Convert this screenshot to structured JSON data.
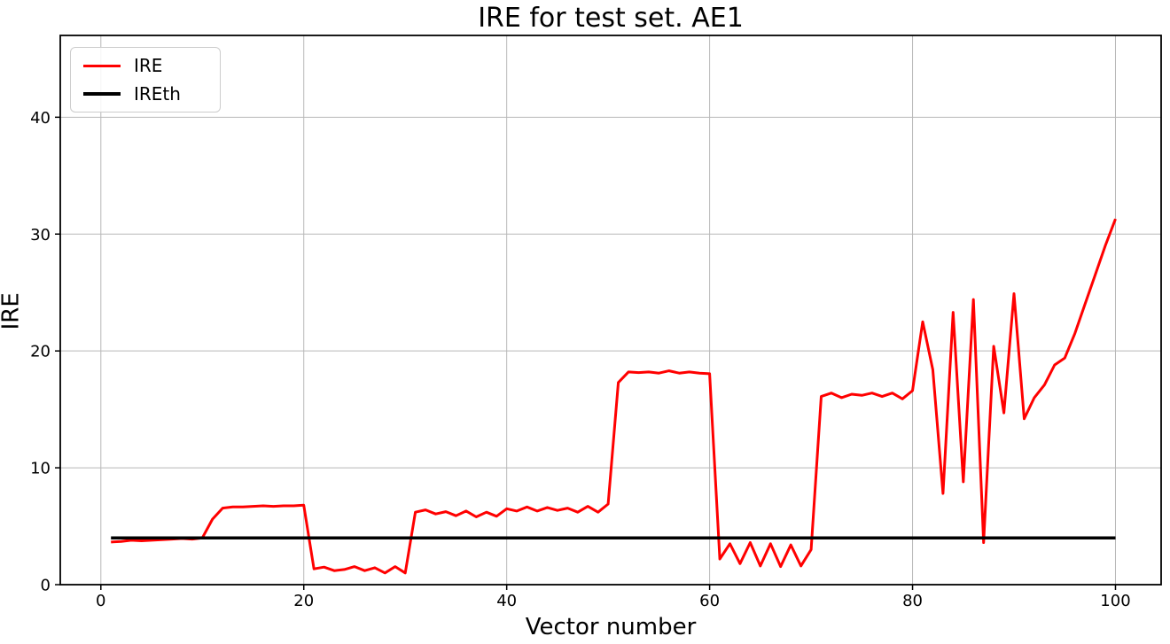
{
  "chart_data": {
    "type": "line",
    "title": "IRE for test set. AE1",
    "xlabel": "Vector number",
    "ylabel": "IRE",
    "grid": true,
    "legend_position": "upper left",
    "x_ticks": [
      0,
      20,
      40,
      60,
      80,
      100
    ],
    "y_ticks": [
      0,
      10,
      20,
      30,
      40
    ],
    "xlim": [
      -4.0,
      104.5
    ],
    "ylim": [
      0,
      47
    ],
    "x": [
      1,
      2,
      3,
      4,
      5,
      6,
      7,
      8,
      9,
      10,
      11,
      12,
      13,
      14,
      15,
      16,
      17,
      18,
      19,
      20,
      21,
      22,
      23,
      24,
      25,
      26,
      27,
      28,
      29,
      30,
      31,
      32,
      33,
      34,
      35,
      36,
      37,
      38,
      39,
      40,
      41,
      42,
      43,
      44,
      45,
      46,
      47,
      48,
      49,
      50,
      51,
      52,
      53,
      54,
      55,
      56,
      57,
      58,
      59,
      60,
      61,
      62,
      63,
      64,
      65,
      66,
      67,
      68,
      69,
      70,
      71,
      72,
      73,
      74,
      75,
      76,
      77,
      78,
      79,
      80,
      81,
      82,
      83,
      84,
      85,
      86,
      87,
      88,
      89,
      90,
      91,
      92,
      93,
      94,
      95,
      96,
      97,
      98,
      99,
      100
    ],
    "series": [
      {
        "name": "IRE",
        "color": "#ff0000",
        "linewidth": 3,
        "values": [
          3.65,
          3.7,
          3.8,
          3.75,
          3.8,
          3.85,
          3.9,
          3.95,
          3.9,
          4.0,
          5.6,
          6.55,
          6.65,
          6.65,
          6.7,
          6.75,
          6.7,
          6.75,
          6.75,
          6.8,
          1.35,
          1.5,
          1.2,
          1.3,
          1.55,
          1.2,
          1.45,
          1.0,
          1.55,
          1.0,
          6.2,
          6.4,
          6.05,
          6.25,
          5.9,
          6.3,
          5.8,
          6.2,
          5.85,
          6.5,
          6.3,
          6.65,
          6.3,
          6.6,
          6.35,
          6.55,
          6.2,
          6.7,
          6.2,
          6.9,
          17.3,
          18.2,
          18.15,
          18.2,
          18.1,
          18.3,
          18.1,
          18.2,
          18.1,
          18.05,
          2.2,
          3.5,
          1.8,
          3.6,
          1.6,
          3.5,
          1.55,
          3.4,
          1.6,
          3.0,
          16.1,
          16.4,
          16.0,
          16.3,
          16.2,
          16.4,
          16.1,
          16.4,
          15.9,
          16.6,
          22.5,
          18.4,
          7.8,
          23.3,
          8.8,
          24.4,
          3.6,
          20.4,
          14.7,
          24.9,
          14.2,
          16.0,
          17.1,
          18.8,
          19.4,
          21.5,
          24.0,
          26.5,
          29.0,
          31.3
        ]
      },
      {
        "name": "IREth",
        "color": "#000000",
        "linewidth": 3.5,
        "constant": 4.0,
        "x_range": [
          1,
          100
        ]
      }
    ]
  },
  "legend": {
    "items": [
      {
        "label": "IRE",
        "color": "#ff0000"
      },
      {
        "label": "IREth",
        "color": "#000000"
      }
    ]
  },
  "colors": {
    "background": "#ffffff",
    "grid": "#b8b8b8",
    "spine": "#000000",
    "text": "#000000"
  }
}
